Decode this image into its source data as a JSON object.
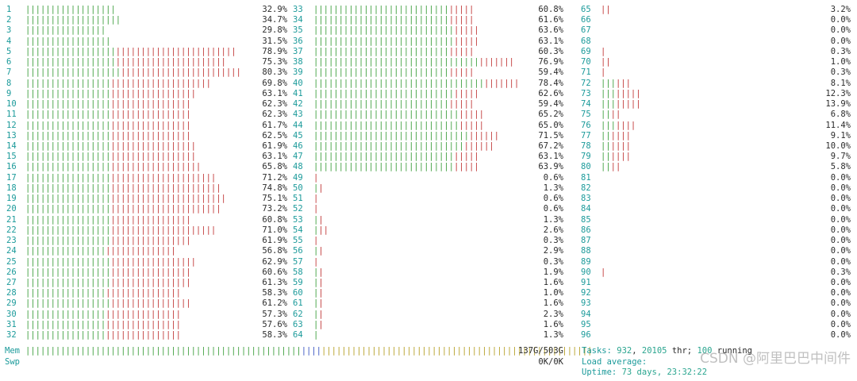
{
  "colors": {
    "cpu_number": "#1b9a9a",
    "bar_normal": "#40a040",
    "bar_kernel": "#c23a3a",
    "mem_buffers": "#3a55c2",
    "mem_cache": "#b7a128"
  },
  "cpus": [
    {
      "id": "1",
      "pct": "32.9%",
      "g": 18,
      "r": 0
    },
    {
      "id": "2",
      "pct": "34.7%",
      "g": 19,
      "r": 0
    },
    {
      "id": "3",
      "pct": "29.8%",
      "g": 16,
      "r": 0
    },
    {
      "id": "4",
      "pct": "31.5%",
      "g": 17,
      "r": 0
    },
    {
      "id": "5",
      "pct": "78.9%",
      "g": 18,
      "r": 24
    },
    {
      "id": "6",
      "pct": "75.3%",
      "g": 18,
      "r": 22
    },
    {
      "id": "7",
      "pct": "80.3%",
      "g": 19,
      "r": 24
    },
    {
      "id": "8",
      "pct": "69.8%",
      "g": 17,
      "r": 20
    },
    {
      "id": "9",
      "pct": "63.1%",
      "g": 17,
      "r": 17
    },
    {
      "id": "10",
      "pct": "62.3%",
      "g": 17,
      "r": 16
    },
    {
      "id": "11",
      "pct": "62.3%",
      "g": 17,
      "r": 16
    },
    {
      "id": "12",
      "pct": "61.7%",
      "g": 17,
      "r": 16
    },
    {
      "id": "13",
      "pct": "62.5%",
      "g": 17,
      "r": 16
    },
    {
      "id": "14",
      "pct": "61.9%",
      "g": 17,
      "r": 17
    },
    {
      "id": "15",
      "pct": "63.1%",
      "g": 17,
      "r": 17
    },
    {
      "id": "16",
      "pct": "65.8%",
      "g": 17,
      "r": 18
    },
    {
      "id": "17",
      "pct": "71.2%",
      "g": 17,
      "r": 21
    },
    {
      "id": "18",
      "pct": "74.8%",
      "g": 17,
      "r": 22
    },
    {
      "id": "19",
      "pct": "75.1%",
      "g": 17,
      "r": 23
    },
    {
      "id": "20",
      "pct": "73.2%",
      "g": 17,
      "r": 22
    },
    {
      "id": "21",
      "pct": "60.8%",
      "g": 17,
      "r": 16
    },
    {
      "id": "22",
      "pct": "71.0%",
      "g": 17,
      "r": 21
    },
    {
      "id": "23",
      "pct": "61.9%",
      "g": 17,
      "r": 16
    },
    {
      "id": "24",
      "pct": "56.8%",
      "g": 16,
      "r": 14
    },
    {
      "id": "25",
      "pct": "62.9%",
      "g": 17,
      "r": 17
    },
    {
      "id": "26",
      "pct": "60.6%",
      "g": 17,
      "r": 16
    },
    {
      "id": "27",
      "pct": "61.3%",
      "g": 17,
      "r": 16
    },
    {
      "id": "28",
      "pct": "58.3%",
      "g": 16,
      "r": 15
    },
    {
      "id": "29",
      "pct": "61.2%",
      "g": 17,
      "r": 16
    },
    {
      "id": "30",
      "pct": "57.3%",
      "g": 16,
      "r": 15
    },
    {
      "id": "31",
      "pct": "57.6%",
      "g": 16,
      "r": 15
    },
    {
      "id": "32",
      "pct": "58.3%",
      "g": 16,
      "r": 15
    },
    {
      "id": "33",
      "pct": "60.8%",
      "g": 27,
      "r": 5
    },
    {
      "id": "34",
      "pct": "61.6%",
      "g": 27,
      "r": 5
    },
    {
      "id": "35",
      "pct": "63.6%",
      "g": 28,
      "r": 5
    },
    {
      "id": "36",
      "pct": "63.1%",
      "g": 28,
      "r": 5
    },
    {
      "id": "37",
      "pct": "60.3%",
      "g": 27,
      "r": 5
    },
    {
      "id": "38",
      "pct": "76.9%",
      "g": 33,
      "r": 7
    },
    {
      "id": "39",
      "pct": "59.4%",
      "g": 27,
      "r": 5
    },
    {
      "id": "40",
      "pct": "78.4%",
      "g": 34,
      "r": 7
    },
    {
      "id": "41",
      "pct": "62.6%",
      "g": 28,
      "r": 5
    },
    {
      "id": "42",
      "pct": "59.4%",
      "g": 27,
      "r": 5
    },
    {
      "id": "43",
      "pct": "65.2%",
      "g": 29,
      "r": 5
    },
    {
      "id": "44",
      "pct": "65.0%",
      "g": 29,
      "r": 5
    },
    {
      "id": "45",
      "pct": "71.5%",
      "g": 31,
      "r": 6
    },
    {
      "id": "46",
      "pct": "67.2%",
      "g": 30,
      "r": 6
    },
    {
      "id": "47",
      "pct": "63.1%",
      "g": 28,
      "r": 5
    },
    {
      "id": "48",
      "pct": "63.9%",
      "g": 28,
      "r": 5
    },
    {
      "id": "49",
      "pct": "0.6%",
      "g": 0,
      "r": 1
    },
    {
      "id": "50",
      "pct": "1.3%",
      "g": 1,
      "r": 1
    },
    {
      "id": "51",
      "pct": "0.6%",
      "g": 0,
      "r": 1
    },
    {
      "id": "52",
      "pct": "0.6%",
      "g": 0,
      "r": 1
    },
    {
      "id": "53",
      "pct": "1.3%",
      "g": 1,
      "r": 1
    },
    {
      "id": "54",
      "pct": "2.6%",
      "g": 1,
      "r": 2
    },
    {
      "id": "55",
      "pct": "0.3%",
      "g": 0,
      "r": 1
    },
    {
      "id": "56",
      "pct": "2.9%",
      "g": 1,
      "r": 1
    },
    {
      "id": "57",
      "pct": "0.3%",
      "g": 0,
      "r": 1
    },
    {
      "id": "58",
      "pct": "1.9%",
      "g": 1,
      "r": 1
    },
    {
      "id": "59",
      "pct": "1.6%",
      "g": 1,
      "r": 1
    },
    {
      "id": "60",
      "pct": "1.0%",
      "g": 1,
      "r": 1
    },
    {
      "id": "61",
      "pct": "1.6%",
      "g": 1,
      "r": 1
    },
    {
      "id": "62",
      "pct": "2.3%",
      "g": 1,
      "r": 1
    },
    {
      "id": "63",
      "pct": "1.6%",
      "g": 1,
      "r": 1
    },
    {
      "id": "64",
      "pct": "1.3%",
      "g": 1,
      "r": 0
    },
    {
      "id": "65",
      "pct": "3.2%",
      "g": 0,
      "r": 2
    },
    {
      "id": "66",
      "pct": "0.0%",
      "g": 0,
      "r": 0
    },
    {
      "id": "67",
      "pct": "0.0%",
      "g": 0,
      "r": 0
    },
    {
      "id": "68",
      "pct": "0.0%",
      "g": 0,
      "r": 0
    },
    {
      "id": "69",
      "pct": "0.3%",
      "g": 0,
      "r": 1
    },
    {
      "id": "70",
      "pct": "1.0%",
      "g": 0,
      "r": 2
    },
    {
      "id": "71",
      "pct": "0.3%",
      "g": 0,
      "r": 1
    },
    {
      "id": "72",
      "pct": "8.1%",
      "g": 3,
      "r": 3
    },
    {
      "id": "73",
      "pct": "12.3%",
      "g": 3,
      "r": 5
    },
    {
      "id": "74",
      "pct": "13.9%",
      "g": 3,
      "r": 5
    },
    {
      "id": "75",
      "pct": "6.8%",
      "g": 2,
      "r": 2
    },
    {
      "id": "76",
      "pct": "11.4%",
      "g": 3,
      "r": 4
    },
    {
      "id": "77",
      "pct": "9.1%",
      "g": 2,
      "r": 4
    },
    {
      "id": "78",
      "pct": "10.0%",
      "g": 2,
      "r": 4
    },
    {
      "id": "79",
      "pct": "9.7%",
      "g": 2,
      "r": 4
    },
    {
      "id": "80",
      "pct": "5.8%",
      "g": 2,
      "r": 2
    },
    {
      "id": "81",
      "pct": "0.0%",
      "g": 0,
      "r": 0
    },
    {
      "id": "82",
      "pct": "0.0%",
      "g": 0,
      "r": 0
    },
    {
      "id": "83",
      "pct": "0.0%",
      "g": 0,
      "r": 0
    },
    {
      "id": "84",
      "pct": "0.0%",
      "g": 0,
      "r": 0
    },
    {
      "id": "85",
      "pct": "0.0%",
      "g": 0,
      "r": 0
    },
    {
      "id": "86",
      "pct": "0.0%",
      "g": 0,
      "r": 0
    },
    {
      "id": "87",
      "pct": "0.0%",
      "g": 0,
      "r": 0
    },
    {
      "id": "88",
      "pct": "0.0%",
      "g": 0,
      "r": 0
    },
    {
      "id": "89",
      "pct": "0.0%",
      "g": 0,
      "r": 0
    },
    {
      "id": "90",
      "pct": "0.3%",
      "g": 0,
      "r": 1
    },
    {
      "id": "91",
      "pct": "0.0%",
      "g": 0,
      "r": 0
    },
    {
      "id": "92",
      "pct": "0.0%",
      "g": 0,
      "r": 0
    },
    {
      "id": "93",
      "pct": "0.0%",
      "g": 0,
      "r": 0
    },
    {
      "id": "94",
      "pct": "0.0%",
      "g": 0,
      "r": 0
    },
    {
      "id": "95",
      "pct": "0.0%",
      "g": 0,
      "r": 0
    },
    {
      "id": "96",
      "pct": "0.0%",
      "g": 0,
      "r": 0
    }
  ],
  "memory": {
    "label": "Mem",
    "value": "137G/503G",
    "segments": {
      "g": 55,
      "b": 4,
      "y": 54
    }
  },
  "swap": {
    "label": "Swp",
    "value": "0K/0K"
  },
  "tasks": {
    "label": "Tasks:",
    "count": "932",
    "sep1": ",",
    "threads": "20105",
    "thr_label": "thr;",
    "running": "100",
    "running_label": "running"
  },
  "load": {
    "label": "Load average:",
    "values": ""
  },
  "uptime": {
    "label": "Uptime:",
    "value": "73 days, 23:32:22"
  },
  "watermark": {
    "text": "CSDN @阿里巴巴中间件"
  }
}
